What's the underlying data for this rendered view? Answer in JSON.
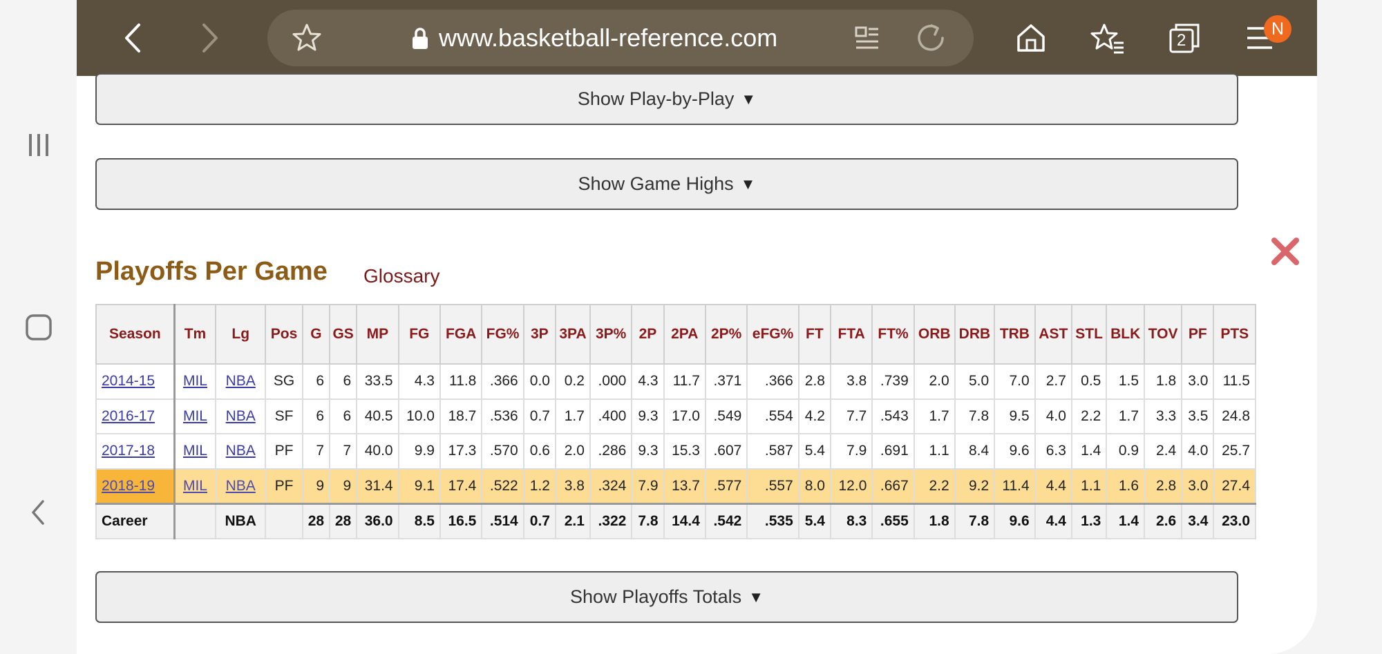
{
  "browser": {
    "url": "www.basketball-reference.com",
    "tab_count": "2",
    "profile_initial": "N"
  },
  "buttons": {
    "play_by_play": "Show Play-by-Play",
    "game_highs": "Show Game Highs",
    "playoffs_totals": "Show Playoffs Totals",
    "arrow": "▼"
  },
  "section": {
    "title": "Playoffs Per Game",
    "glossary": "Glossary"
  },
  "table": {
    "headers": [
      "Season",
      "Tm",
      "Lg",
      "Pos",
      "G",
      "GS",
      "MP",
      "FG",
      "FGA",
      "FG%",
      "3P",
      "3PA",
      "3P%",
      "2P",
      "2PA",
      "2P%",
      "eFG%",
      "FT",
      "FTA",
      "FT%",
      "ORB",
      "DRB",
      "TRB",
      "AST",
      "STL",
      "BLK",
      "TOV",
      "PF",
      "PTS"
    ],
    "rows": [
      [
        "2014-15",
        "MIL",
        "NBA",
        "SG",
        "6",
        "6",
        "33.5",
        "4.3",
        "11.8",
        ".366",
        "0.0",
        "0.2",
        ".000",
        "4.3",
        "11.7",
        ".371",
        ".366",
        "2.8",
        "3.8",
        ".739",
        "2.0",
        "5.0",
        "7.0",
        "2.7",
        "0.5",
        "1.5",
        "1.8",
        "3.0",
        "11.5"
      ],
      [
        "2016-17",
        "MIL",
        "NBA",
        "SF",
        "6",
        "6",
        "40.5",
        "10.0",
        "18.7",
        ".536",
        "0.7",
        "1.7",
        ".400",
        "9.3",
        "17.0",
        ".549",
        ".554",
        "4.2",
        "7.7",
        ".543",
        "1.7",
        "7.8",
        "9.5",
        "4.0",
        "2.2",
        "1.7",
        "3.3",
        "3.5",
        "24.8"
      ],
      [
        "2017-18",
        "MIL",
        "NBA",
        "PF",
        "7",
        "7",
        "40.0",
        "9.9",
        "17.3",
        ".570",
        "0.6",
        "2.0",
        ".286",
        "9.3",
        "15.3",
        ".607",
        ".587",
        "5.4",
        "7.9",
        ".691",
        "1.1",
        "8.4",
        "9.6",
        "6.3",
        "1.4",
        "0.9",
        "2.4",
        "4.0",
        "25.7"
      ],
      [
        "2018-19",
        "MIL",
        "NBA",
        "PF",
        "9",
        "9",
        "31.4",
        "9.1",
        "17.4",
        ".522",
        "1.2",
        "3.8",
        ".324",
        "7.9",
        "13.7",
        ".577",
        ".557",
        "8.0",
        "12.0",
        ".667",
        "2.2",
        "9.2",
        "11.4",
        "4.4",
        "1.1",
        "1.6",
        "2.8",
        "3.0",
        "27.4"
      ]
    ],
    "career": [
      "Career",
      "",
      "NBA",
      "",
      "28",
      "28",
      "36.0",
      "8.5",
      "16.5",
      ".514",
      "0.7",
      "2.1",
      ".322",
      "7.8",
      "14.4",
      ".542",
      ".535",
      "5.4",
      "8.3",
      ".655",
      "1.8",
      "7.8",
      "9.6",
      "4.4",
      "1.3",
      "1.4",
      "2.6",
      "3.4",
      "23.0"
    ]
  },
  "colors": {
    "toolbar": "#5b4f3d",
    "title": "#8c5b16",
    "header_text": "#8b1a1a",
    "highlight_row": "#fddc94",
    "highlight_season": "#f7b53a",
    "close_icon": "#d9666a"
  }
}
